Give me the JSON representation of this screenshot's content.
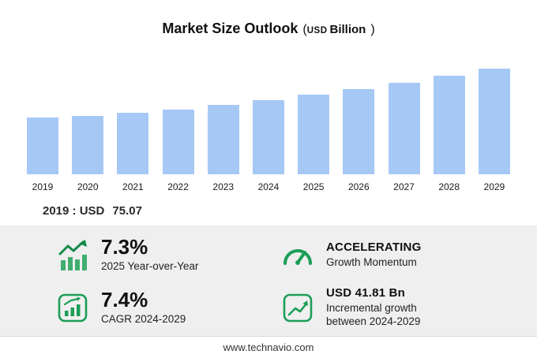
{
  "header": {
    "title": "Market Size Outlook",
    "paren_open": "(",
    "unit_small": "USD",
    "unit_rest": "Billion",
    "paren_close": ")"
  },
  "chart_data": {
    "type": "bar",
    "title": "Market Size Outlook (USD Billion)",
    "categories": [
      "2019",
      "2020",
      "2021",
      "2022",
      "2023",
      "2024",
      "2025",
      "2026",
      "2027",
      "2028",
      "2029"
    ],
    "values": [
      75.07,
      76.4,
      80.6,
      85.4,
      91.0,
      97.4,
      104.5,
      111.9,
      120.1,
      129.3,
      139.2
    ],
    "xlabel": "",
    "ylabel": "USD Billion",
    "ylim": [
      0,
      145
    ],
    "grid": false,
    "legend": "none",
    "bar_color": "#a6c8f5"
  },
  "baseline": {
    "label": "2019 : USD",
    "value": "75.07"
  },
  "stats": [
    {
      "value": "7.3%",
      "label": "2025 Year-over-Year",
      "icon": "bars-up-arrow-icon"
    },
    {
      "value": "ACCELERATING",
      "label": "Growth Momentum",
      "icon": "gauge-icon"
    },
    {
      "value": "7.4%",
      "label": "CAGR 2024-2029",
      "icon": "chart-box-icon"
    },
    {
      "value": "USD 41.81 Bn",
      "label": "Incremental growth",
      "label2": "between 2024-2029",
      "icon": "trend-box-icon"
    }
  ],
  "footer": {
    "url": "www.technavio.com"
  },
  "colors": {
    "bar": "#a6c8f5",
    "green": "#1b9e57",
    "panel": "#efefef"
  }
}
